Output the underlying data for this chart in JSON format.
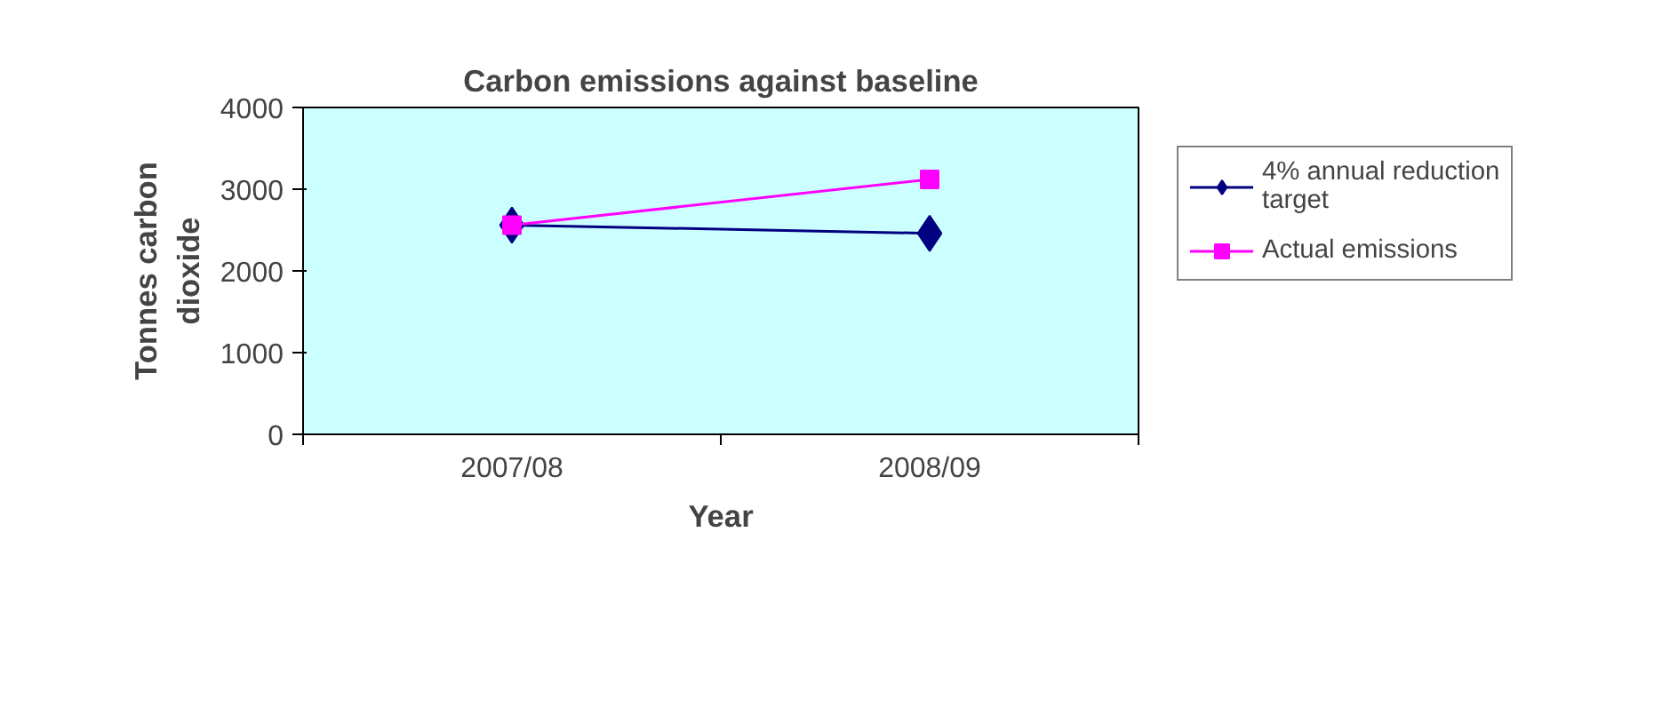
{
  "chart_data": {
    "type": "line",
    "title": "Carbon emissions against baseline",
    "xlabel": "Year",
    "ylabel": "Tonnes carbon\ndioxide",
    "categories": [
      "2007/08",
      "2008/09"
    ],
    "series": [
      {
        "name": "4% annual reduction\ntarget",
        "color": "#000080",
        "values": [
          2560,
          2460
        ],
        "marker": "diamond"
      },
      {
        "name": "Actual emissions",
        "color": "#ff00ff",
        "values": [
          2560,
          3120
        ],
        "marker": "square"
      }
    ],
    "ylim": [
      0,
      4000
    ],
    "yticks": [
      0,
      1000,
      2000,
      3000,
      4000
    ],
    "grid": false,
    "legend": "right",
    "line_style": "solid"
  }
}
